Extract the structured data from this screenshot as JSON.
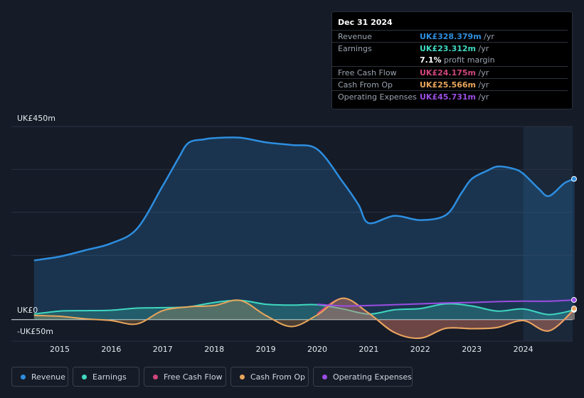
{
  "chart_data": {
    "type": "area",
    "x_unit": "year",
    "y_unit": "UK£ m",
    "ylim": [
      -50,
      450
    ],
    "y_tick_labels": [
      "UK£450m",
      "UK£0",
      "-UK£50m"
    ],
    "x_tick_labels": [
      "2015",
      "2016",
      "2017",
      "2018",
      "2019",
      "2020",
      "2021",
      "2022",
      "2023",
      "2024"
    ],
    "highlight_start": 2024.0,
    "series": [
      {
        "name": "Revenue",
        "color": "#2d8ee0",
        "filled": true,
        "points": [
          [
            2014.5,
            138
          ],
          [
            2015.0,
            147
          ],
          [
            2015.5,
            162
          ],
          [
            2016.0,
            178
          ],
          [
            2016.5,
            212
          ],
          [
            2017.0,
            312
          ],
          [
            2017.3,
            375
          ],
          [
            2017.5,
            412
          ],
          [
            2017.8,
            420
          ],
          [
            2018.0,
            423
          ],
          [
            2018.5,
            424
          ],
          [
            2019.0,
            413
          ],
          [
            2019.5,
            407
          ],
          [
            2020.0,
            397
          ],
          [
            2020.5,
            320
          ],
          [
            2020.8,
            268
          ],
          [
            2021.0,
            225
          ],
          [
            2021.5,
            242
          ],
          [
            2022.0,
            232
          ],
          [
            2022.5,
            244
          ],
          [
            2022.8,
            295
          ],
          [
            2023.0,
            328
          ],
          [
            2023.3,
            347
          ],
          [
            2023.5,
            357
          ],
          [
            2023.8,
            352
          ],
          [
            2024.0,
            340
          ],
          [
            2024.3,
            305
          ],
          [
            2024.5,
            288
          ],
          [
            2024.8,
            318
          ],
          [
            2025.0,
            328
          ]
        ]
      },
      {
        "name": "Earnings",
        "color": "#3fd8c0",
        "filled": true,
        "points": [
          [
            2014.5,
            13
          ],
          [
            2015.0,
            20
          ],
          [
            2015.5,
            21
          ],
          [
            2016.0,
            22
          ],
          [
            2016.5,
            27
          ],
          [
            2017.0,
            28
          ],
          [
            2017.5,
            30
          ],
          [
            2018.0,
            40
          ],
          [
            2018.5,
            45
          ],
          [
            2019.0,
            36
          ],
          [
            2019.5,
            34
          ],
          [
            2020.0,
            35
          ],
          [
            2020.5,
            25
          ],
          [
            2021.0,
            13
          ],
          [
            2021.5,
            23
          ],
          [
            2022.0,
            26
          ],
          [
            2022.5,
            37
          ],
          [
            2023.0,
            32
          ],
          [
            2023.5,
            20
          ],
          [
            2024.0,
            25
          ],
          [
            2024.5,
            12
          ],
          [
            2025.0,
            23
          ]
        ]
      },
      {
        "name": "Free Cash Flow",
        "color": "#d1467c",
        "filled": true,
        "points": [
          [
            2020.0,
            14
          ],
          [
            2020.5,
            50
          ],
          [
            2021.0,
            15
          ],
          [
            2021.5,
            -30
          ],
          [
            2022.0,
            -43
          ],
          [
            2022.5,
            -20
          ],
          [
            2023.0,
            -21
          ],
          [
            2023.5,
            -18
          ],
          [
            2024.0,
            -2
          ],
          [
            2024.5,
            -26
          ],
          [
            2025.0,
            24
          ]
        ]
      },
      {
        "name": "Cash From Op",
        "color": "#e8a65c",
        "filled": true,
        "points": [
          [
            2014.5,
            10
          ],
          [
            2015.0,
            8
          ],
          [
            2015.5,
            2
          ],
          [
            2016.0,
            -2
          ],
          [
            2016.5,
            -10
          ],
          [
            2017.0,
            21
          ],
          [
            2017.5,
            30
          ],
          [
            2018.0,
            33
          ],
          [
            2018.5,
            45
          ],
          [
            2019.0,
            10
          ],
          [
            2019.5,
            -16
          ],
          [
            2020.0,
            11
          ],
          [
            2020.5,
            50
          ],
          [
            2021.0,
            15
          ],
          [
            2021.5,
            -30
          ],
          [
            2022.0,
            -43
          ],
          [
            2022.5,
            -20
          ],
          [
            2023.0,
            -21
          ],
          [
            2023.5,
            -18
          ],
          [
            2024.0,
            -2
          ],
          [
            2024.5,
            -26
          ],
          [
            2025.0,
            26
          ]
        ]
      },
      {
        "name": "Operating Expenses",
        "color": "#9b4de3",
        "filled": false,
        "points": [
          [
            2020.0,
            36
          ],
          [
            2020.5,
            32
          ],
          [
            2021.0,
            33
          ],
          [
            2021.5,
            35
          ],
          [
            2022.0,
            37
          ],
          [
            2022.5,
            39
          ],
          [
            2023.0,
            40
          ],
          [
            2023.5,
            42
          ],
          [
            2024.0,
            43
          ],
          [
            2024.5,
            43
          ],
          [
            2025.0,
            46
          ]
        ]
      }
    ]
  },
  "tooltip": {
    "date": "Dec 31 2024",
    "rows": [
      {
        "label": "Revenue",
        "value": "UK£328.379m",
        "unit": " /yr",
        "color": "#2d8ee0"
      },
      {
        "label": "Earnings",
        "value": "UK£23.312m",
        "unit": " /yr",
        "color": "#3fd8c0"
      },
      {
        "label": "",
        "value": "7.1%",
        "unit": " profit margin",
        "color": "#ffffff"
      },
      {
        "label": "Free Cash Flow",
        "value": "UK£24.175m",
        "unit": " /yr",
        "color": "#d1467c"
      },
      {
        "label": "Cash From Op",
        "value": "UK£25.566m",
        "unit": " /yr",
        "color": "#e8a65c"
      },
      {
        "label": "Operating Expenses",
        "value": "UK£45.731m",
        "unit": " /yr",
        "color": "#9b4de3"
      }
    ]
  },
  "legend": [
    {
      "label": "Revenue",
      "color": "#2d8ee0"
    },
    {
      "label": "Earnings",
      "color": "#3fd8c0"
    },
    {
      "label": "Free Cash Flow",
      "color": "#d1467c"
    },
    {
      "label": "Cash From Op",
      "color": "#e8a65c"
    },
    {
      "label": "Operating Expenses",
      "color": "#9b4de3"
    }
  ]
}
